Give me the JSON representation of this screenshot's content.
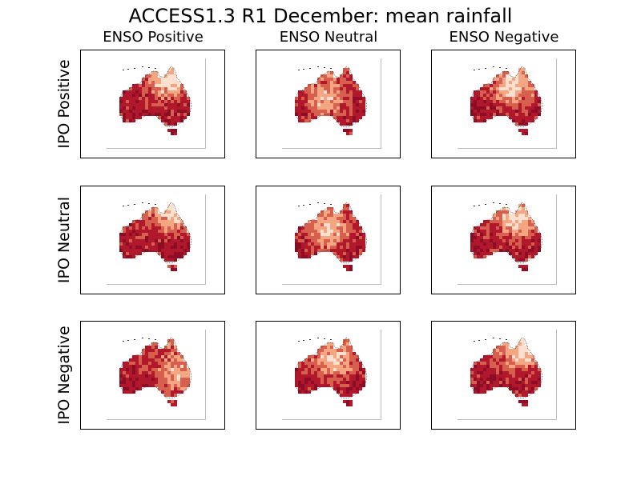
{
  "chart_data": {
    "type": "heatmap",
    "title": "ACCESS1.3 R1 December: mean rainfall",
    "columns": [
      "ENSO Positive",
      "ENSO Neutral",
      "ENSO Negative"
    ],
    "rows": [
      "IPO Positive",
      "IPO Neutral",
      "IPO Negative"
    ],
    "colormap": [
      "#fbe0cf",
      "#f4a582",
      "#d6604d",
      "#b2182b",
      "#8c0d25"
    ],
    "panels": [
      {
        "row": "IPO Positive",
        "col": "ENSO Positive",
        "region": "Australia"
      },
      {
        "row": "IPO Positive",
        "col": "ENSO Neutral",
        "region": "Australia"
      },
      {
        "row": "IPO Positive",
        "col": "ENSO Negative",
        "region": "Australia"
      },
      {
        "row": "IPO Neutral",
        "col": "ENSO Positive",
        "region": "Australia"
      },
      {
        "row": "IPO Neutral",
        "col": "ENSO Neutral",
        "region": "Australia"
      },
      {
        "row": "IPO Neutral",
        "col": "ENSO Negative",
        "region": "Australia"
      },
      {
        "row": "IPO Negative",
        "col": "ENSO Positive",
        "region": "Australia"
      },
      {
        "row": "IPO Negative",
        "col": "ENSO Neutral",
        "region": "Australia"
      },
      {
        "row": "IPO Negative",
        "col": "ENSO Negative",
        "region": "Australia"
      }
    ]
  }
}
